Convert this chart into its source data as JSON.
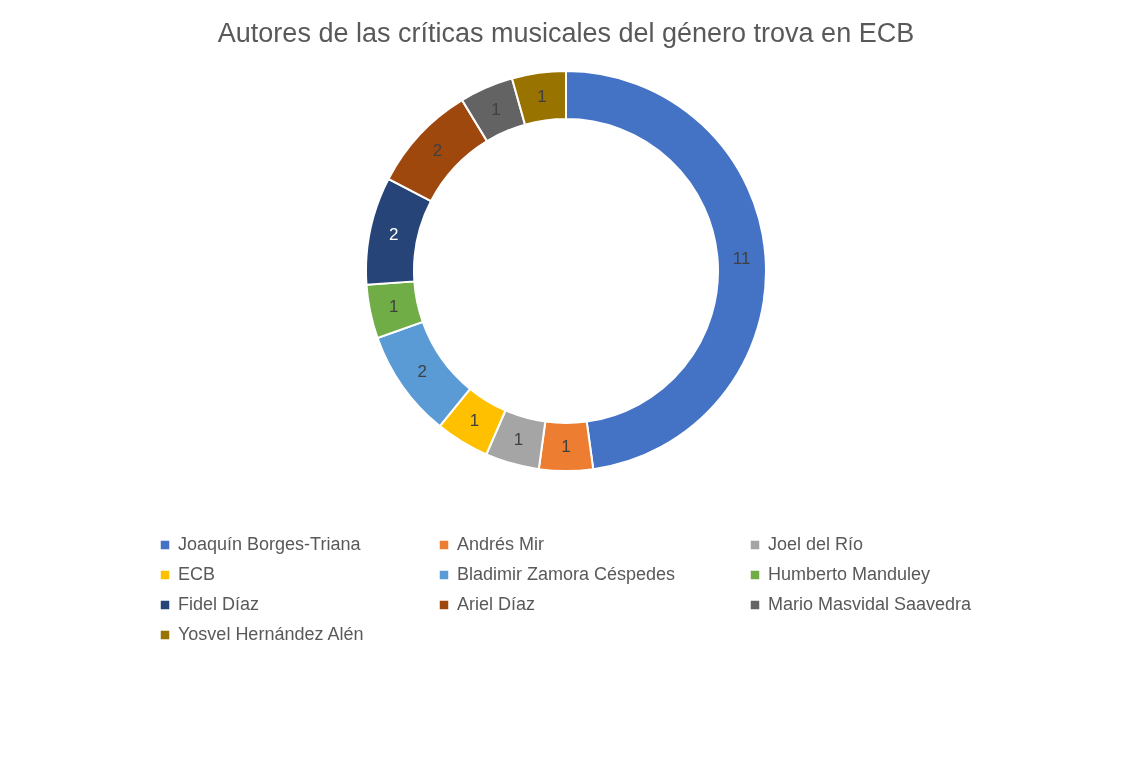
{
  "chart_data": {
    "type": "donut",
    "title": "Autores de las críticas musicales del género trova en ECB",
    "categories": [
      "Joaquín Borges-Triana",
      "Andrés Mir",
      "Joel del Río",
      "ECB",
      "Bladimir Zamora Céspedes",
      "Humberto Manduley",
      "Fidel Díaz",
      "Ariel Díaz",
      "Mario Masvidal Saavedra",
      "Yosvel Hernández Alén"
    ],
    "values": [
      11,
      1,
      1,
      1,
      2,
      1,
      2,
      2,
      1,
      1
    ],
    "colors": [
      "#4472c4",
      "#ed7d31",
      "#a5a5a5",
      "#ffc000",
      "#5b9bd5",
      "#70ad47",
      "#264478",
      "#9e480e",
      "#636363",
      "#997300"
    ],
    "data_labels": true,
    "legend": "bottom"
  }
}
